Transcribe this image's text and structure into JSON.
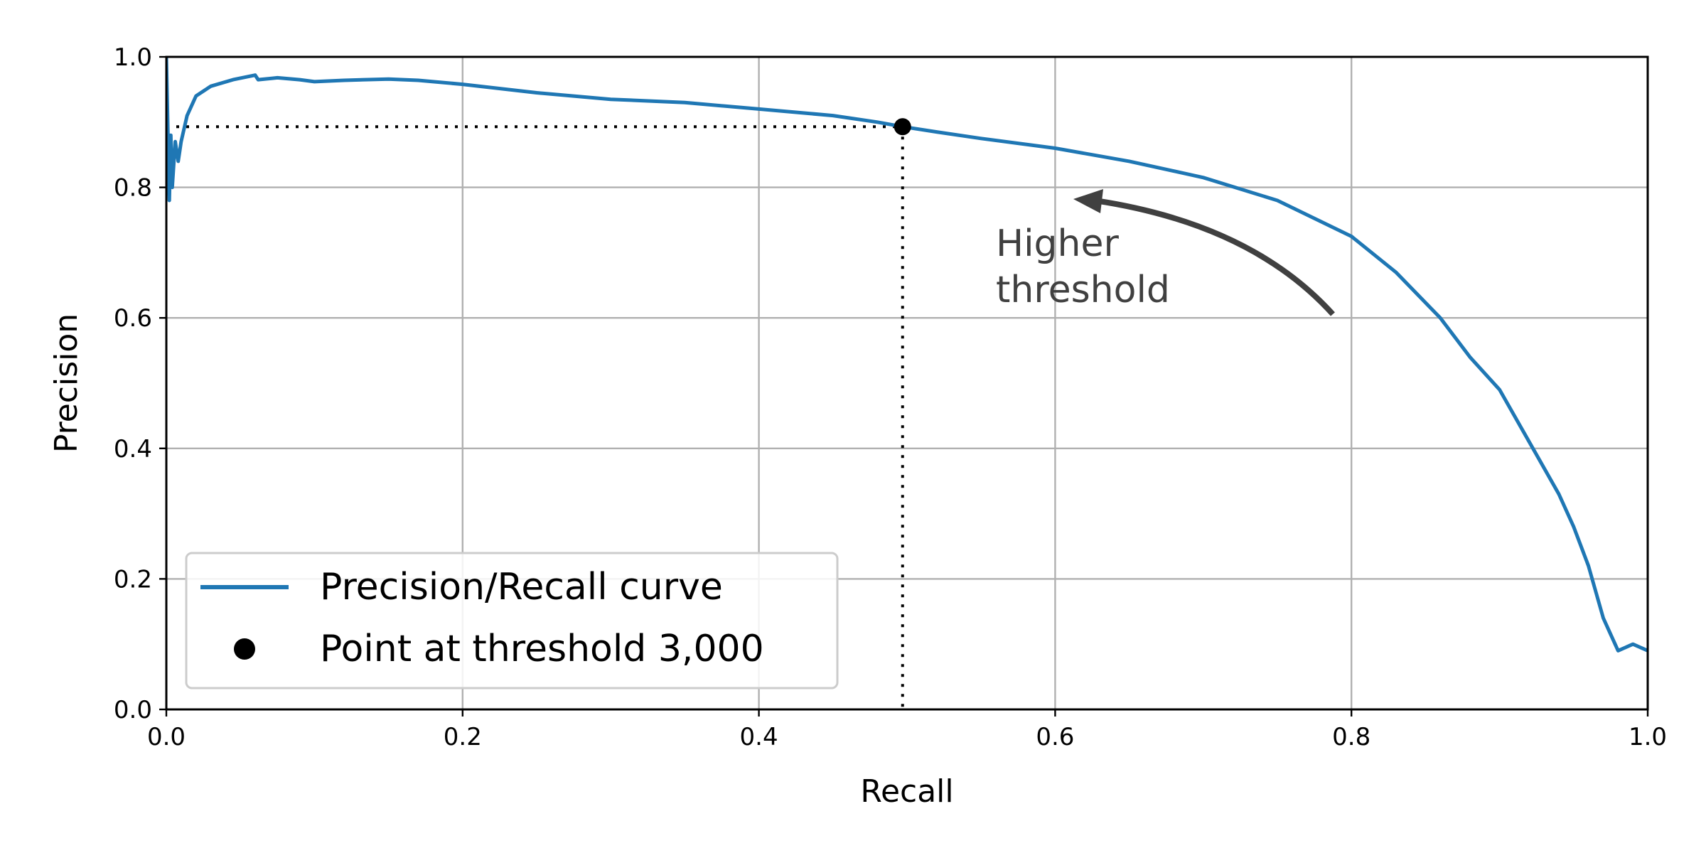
{
  "chart_data": {
    "type": "line",
    "title": "",
    "xlabel": "Recall",
    "ylabel": "Precision",
    "xlim": [
      0.0,
      1.0
    ],
    "ylim": [
      0.0,
      1.0
    ],
    "xticks": [
      "0.0",
      "0.2",
      "0.4",
      "0.6",
      "0.8",
      "1.0"
    ],
    "yticks": [
      "0.0",
      "0.2",
      "0.4",
      "0.6",
      "0.8",
      "1.0"
    ],
    "grid": true,
    "legend_position": "bottom-left",
    "series": [
      {
        "name": "Precision/Recall curve",
        "color": "#1f77b4",
        "x": [
          0.0,
          0.002,
          0.003,
          0.004,
          0.006,
          0.008,
          0.01,
          0.014,
          0.02,
          0.03,
          0.045,
          0.06,
          0.062,
          0.075,
          0.09,
          0.1,
          0.12,
          0.15,
          0.17,
          0.2,
          0.25,
          0.3,
          0.35,
          0.4,
          0.45,
          0.48,
          0.497,
          0.52,
          0.55,
          0.6,
          0.65,
          0.7,
          0.75,
          0.8,
          0.83,
          0.86,
          0.88,
          0.9,
          0.92,
          0.94,
          0.95,
          0.96,
          0.97,
          0.98,
          0.99,
          1.0
        ],
        "y": [
          1.0,
          0.78,
          0.88,
          0.8,
          0.87,
          0.84,
          0.87,
          0.91,
          0.94,
          0.955,
          0.965,
          0.972,
          0.965,
          0.968,
          0.965,
          0.962,
          0.964,
          0.966,
          0.964,
          0.958,
          0.945,
          0.935,
          0.93,
          0.92,
          0.91,
          0.9,
          0.893,
          0.885,
          0.875,
          0.86,
          0.84,
          0.815,
          0.78,
          0.725,
          0.67,
          0.6,
          0.54,
          0.49,
          0.41,
          0.33,
          0.28,
          0.22,
          0.14,
          0.09,
          0.1,
          0.09
        ]
      }
    ],
    "highlight_point": {
      "label": "Point at threshold 3,000",
      "x": 0.497,
      "y": 0.893,
      "color": "#000000"
    },
    "annotation": {
      "text_line1": "Higher",
      "text_line2": "threshold",
      "text_x": 0.56,
      "text_y": 0.72,
      "color": "#404040"
    }
  }
}
